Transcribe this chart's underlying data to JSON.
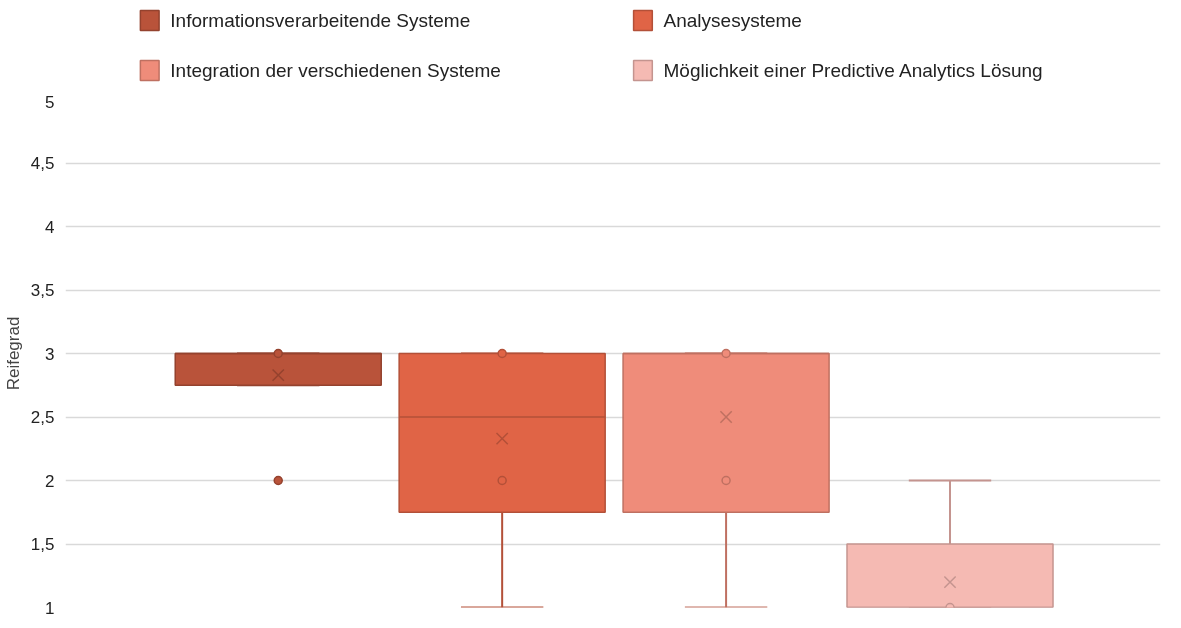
{
  "chart_data": {
    "type": "box",
    "ylabel": "Reifegrad",
    "categories": [
      null
    ],
    "series": [
      {
        "name": "Informationsverarbeitende Systeme",
        "color": "#b9533a",
        "boxes": [
          {
            "low": 2.75,
            "q1": 2.75,
            "median": 3,
            "q3": 3,
            "high": 3,
            "mean": 2.83,
            "outliers": [
              3,
              2
            ]
          }
        ]
      },
      {
        "name": "Analysesysteme",
        "color": "#e06446",
        "boxes": [
          {
            "low": 1,
            "q1": 1.75,
            "median": 2.5,
            "q3": 3,
            "high": 3,
            "mean": 2.33,
            "outliers": [
              3,
              2
            ]
          }
        ]
      },
      {
        "name": "Integration der verschiedenen Systeme",
        "color": "#ef8c7a",
        "boxes": [
          {
            "low": 1,
            "q1": 1.75,
            "median": 3,
            "q3": 3,
            "high": 3,
            "mean": 2.5,
            "outliers": [
              3,
              2
            ]
          }
        ]
      },
      {
        "name": "Möglichkeit einer Predictive Analytics Lösung",
        "color": "#f5bab3",
        "boxes": [
          {
            "low": 1,
            "q1": 1,
            "median": 1,
            "q3": 1.5,
            "high": 2,
            "mean": 1.2,
            "outliers": [
              1
            ]
          }
        ]
      }
    ],
    "ylim": [
      1,
      5
    ],
    "yticks": [
      1,
      {
        "value": 1.5,
        "label": "1,5"
      },
      2,
      {
        "value": 2.5,
        "label": "2,5"
      },
      3,
      {
        "value": 3.5,
        "label": "3,5"
      },
      4,
      {
        "value": 4.5,
        "label": "4,5"
      },
      5
    ],
    "grid": "y",
    "legend": "top",
    "tick_labels": "y",
    "marker": "circle"
  }
}
